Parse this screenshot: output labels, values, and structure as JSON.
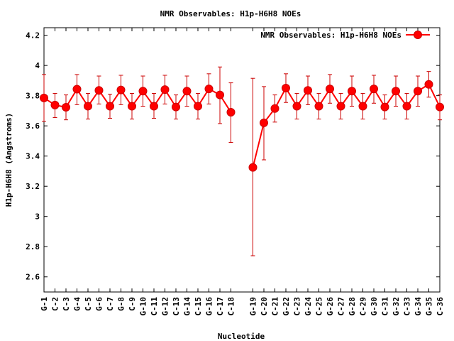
{
  "chart_data": {
    "type": "line",
    "title": "NMR Observables: H1p-H6H8 NOEs",
    "xlabel": "Nucleotide",
    "ylabel": "H1p-H6H8 (Angstroms)",
    "ylim": [
      2.5,
      4.25
    ],
    "yticks": [
      "2.6",
      "2.8",
      "3",
      "3.2",
      "3.4",
      "3.6",
      "3.8",
      "4",
      "4.2"
    ],
    "grid": false,
    "legend_position": "top-right",
    "colors": {
      "series": "#ff0000",
      "errorbar": "#cc0000"
    },
    "categories": [
      "G-1",
      "C-2",
      "C-3",
      "G-4",
      "C-5",
      "G-6",
      "C-7",
      "G-8",
      "C-9",
      "G-10",
      "C-11",
      "G-12",
      "C-13",
      "G-14",
      "C-15",
      "G-16",
      "C-17",
      "C-18",
      "G-19",
      "C-20",
      "C-21",
      "G-22",
      "C-23",
      "G-24",
      "C-25",
      "G-26",
      "C-27",
      "G-28",
      "C-29",
      "G-30",
      "C-31",
      "G-32",
      "C-33",
      "G-34",
      "G-35",
      "C-36"
    ],
    "x_positions": [
      1,
      2,
      3,
      4,
      5,
      6,
      7,
      8,
      9,
      10,
      11,
      12,
      13,
      14,
      15,
      16,
      17,
      18,
      20,
      21,
      22,
      23,
      24,
      25,
      26,
      27,
      28,
      29,
      30,
      31,
      32,
      33,
      34,
      35,
      36,
      37
    ],
    "x_range": [
      1,
      37
    ],
    "series": [
      {
        "name": "NMR Observables: H1p-H6H8 NOEs",
        "segments": [
          [
            0,
            17
          ],
          [
            18,
            35
          ]
        ],
        "values": [
          3.785,
          3.738,
          3.723,
          3.843,
          3.73,
          3.835,
          3.73,
          3.838,
          3.73,
          3.83,
          3.73,
          3.84,
          3.725,
          3.83,
          3.73,
          3.845,
          3.805,
          3.69,
          3.325,
          3.62,
          3.715,
          3.85,
          3.73,
          3.835,
          3.73,
          3.845,
          3.73,
          3.83,
          3.73,
          3.845,
          3.725,
          3.83,
          3.73,
          3.83,
          3.875,
          3.725
        ],
        "err_low": [
          3.63,
          3.655,
          3.64,
          3.74,
          3.645,
          3.745,
          3.65,
          3.74,
          3.645,
          3.73,
          3.65,
          3.745,
          3.645,
          3.73,
          3.645,
          3.745,
          3.615,
          3.49,
          2.74,
          3.375,
          3.625,
          3.755,
          3.645,
          3.74,
          3.645,
          3.75,
          3.645,
          3.73,
          3.645,
          3.75,
          3.645,
          3.73,
          3.645,
          3.73,
          3.79,
          3.64
        ],
        "err_high": [
          3.94,
          3.815,
          3.805,
          3.94,
          3.815,
          3.93,
          3.81,
          3.935,
          3.815,
          3.93,
          3.815,
          3.935,
          3.805,
          3.93,
          3.815,
          3.945,
          3.99,
          3.885,
          3.915,
          3.86,
          3.805,
          3.945,
          3.815,
          3.93,
          3.815,
          3.94,
          3.815,
          3.93,
          3.815,
          3.935,
          3.805,
          3.93,
          3.815,
          3.93,
          3.96,
          3.805
        ]
      }
    ]
  }
}
